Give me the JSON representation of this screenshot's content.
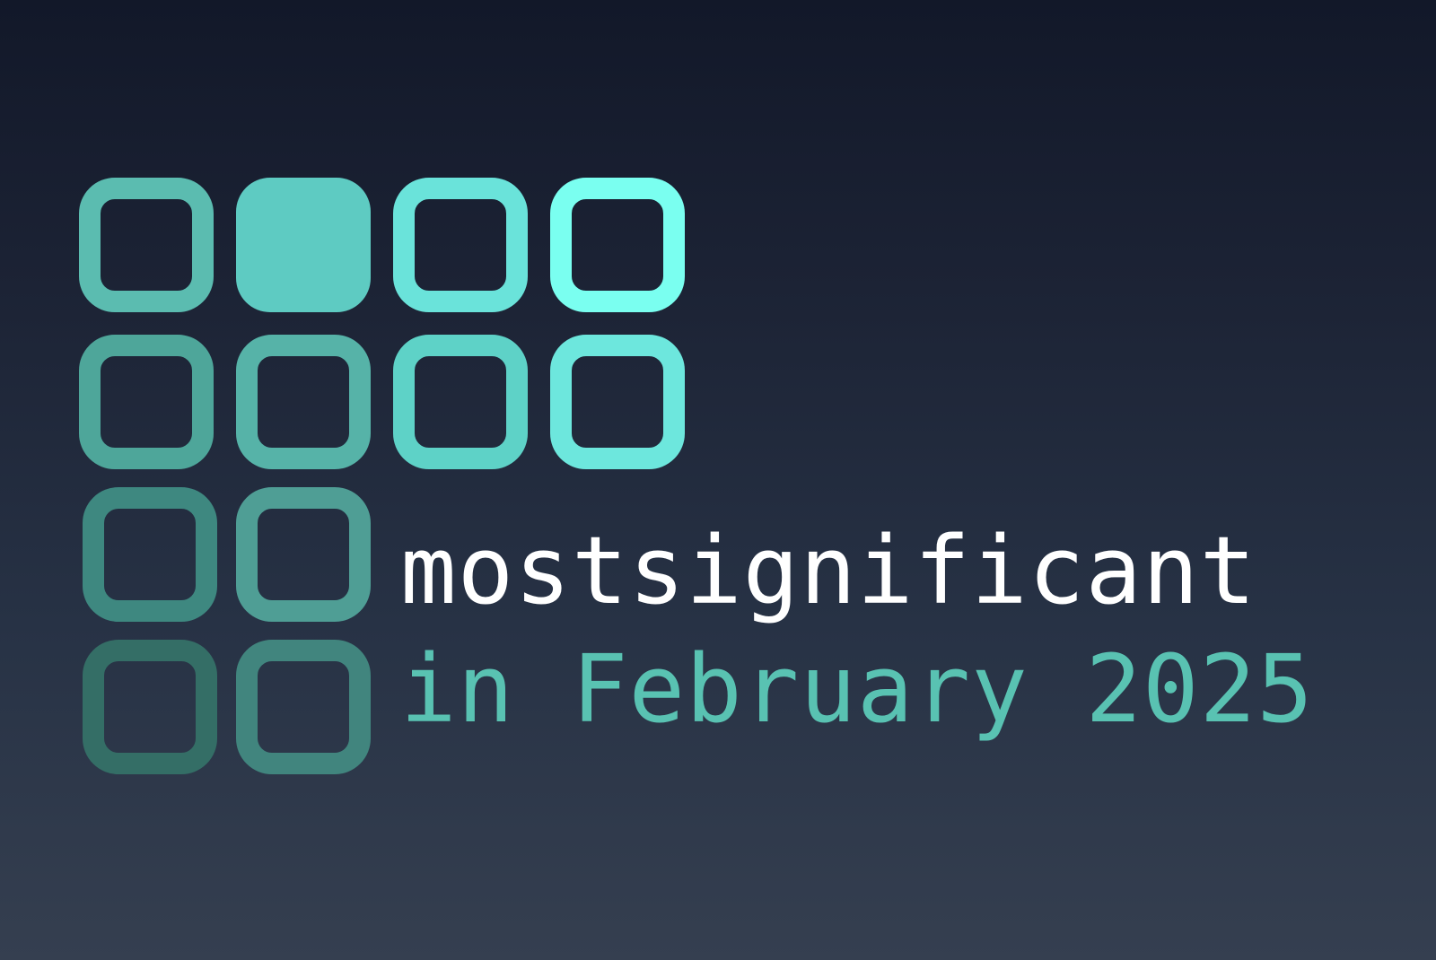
{
  "brand": {
    "name": "mostsignificant",
    "subtitle": "in February 2025"
  },
  "colors": {
    "text_primary": "#ffffff",
    "text_accent": "#59c2b2"
  },
  "logo": {
    "icon": "bit-grid-logo-icon",
    "cells": [
      {
        "state": "outline",
        "color": "#5bbcb0"
      },
      {
        "state": "filled",
        "color": "#5ecbc2"
      },
      {
        "state": "outline",
        "color": "#6ae3da"
      },
      {
        "state": "outline",
        "color": "#7afff0"
      },
      {
        "state": "outline",
        "color": "#4ea69a"
      },
      {
        "state": "outline",
        "color": "#56b3a8"
      },
      {
        "state": "outline",
        "color": "#5ed2c7"
      },
      {
        "state": "outline",
        "color": "#6de7dd"
      },
      {
        "state": "outline",
        "color": "#3e8880"
      },
      {
        "state": "outline",
        "color": "#4f9e95"
      },
      {
        "state": "outline",
        "color": "#346e66"
      },
      {
        "state": "outline",
        "color": "#41857e"
      }
    ]
  }
}
